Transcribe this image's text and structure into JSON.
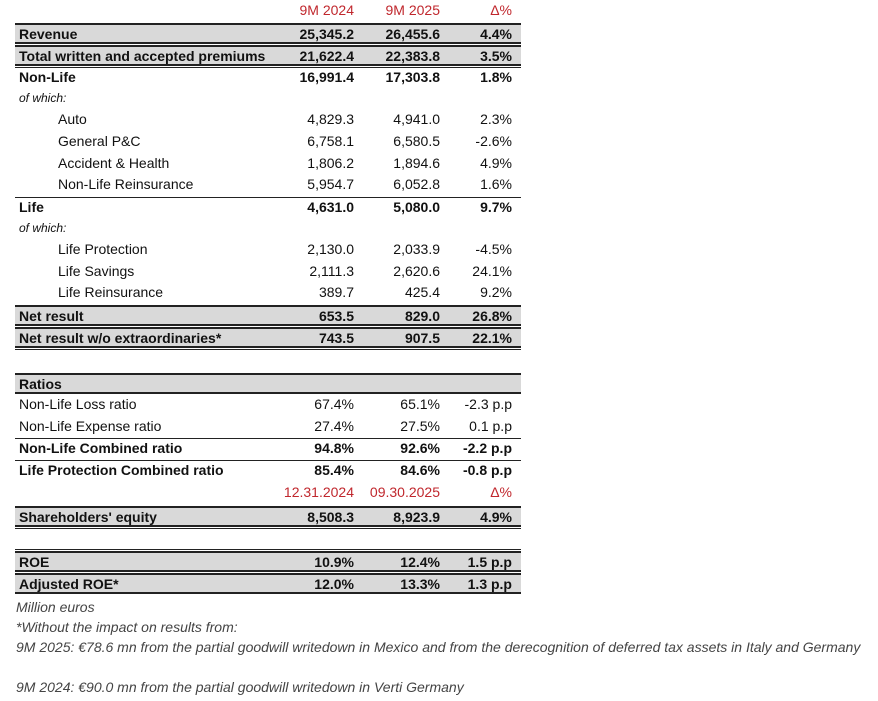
{
  "table": {
    "rows": [
      {
        "values": [
          "9M 2024",
          "9M 2025",
          "Δ%"
        ]
      },
      {
        "label": "Revenue",
        "values": [
          "25,345.2",
          "26,455.6",
          "4.4%"
        ]
      },
      {
        "label": "Total written and accepted premiums",
        "values": [
          "21,622.4",
          "22,383.8",
          "3.5%"
        ]
      },
      {
        "label": "Non-Life",
        "values": [
          "16,991.4",
          "17,303.8",
          "1.8%"
        ]
      },
      {
        "label": "of which:"
      },
      {
        "label": "Auto",
        "values": [
          "4,829.3",
          "4,941.0",
          "2.3%"
        ]
      },
      {
        "label": "General P&C",
        "values": [
          "6,758.1",
          "6,580.5",
          "-2.6%"
        ]
      },
      {
        "label": "Accident & Health",
        "values": [
          "1,806.2",
          "1,894.6",
          "4.9%"
        ]
      },
      {
        "label": "Non-Life Reinsurance",
        "values": [
          "5,954.7",
          "6,052.8",
          "1.6%"
        ]
      },
      {
        "label": "Life",
        "values": [
          "4,631.0",
          "5,080.0",
          "9.7%"
        ]
      },
      {
        "label": "of which:"
      },
      {
        "label": "Life Protection",
        "values": [
          "2,130.0",
          "2,033.9",
          "-4.5%"
        ]
      },
      {
        "label": "Life Savings",
        "values": [
          "2,111.3",
          "2,620.6",
          "24.1%"
        ]
      },
      {
        "label": "Life Reinsurance",
        "values": [
          "389.7",
          "425.4",
          "9.2%"
        ]
      },
      {
        "label": "Net result",
        "values": [
          "653.5",
          "829.0",
          "26.8%"
        ]
      },
      {
        "label": "Net result w/o extraordinaries*",
        "values": [
          "743.5",
          "907.5",
          "22.1%"
        ]
      },
      {
        "label": "Ratios"
      },
      {
        "label": "Non-Life Loss ratio",
        "values": [
          "67.4%",
          "65.1%",
          "-2.3 p.p"
        ]
      },
      {
        "label": "Non-Life Expense ratio",
        "values": [
          "27.4%",
          "27.5%",
          "0.1 p.p"
        ]
      },
      {
        "label": "Non-Life Combined ratio",
        "values": [
          "94.8%",
          "92.6%",
          "-2.2 p.p"
        ]
      },
      {
        "label": "Life Protection Combined ratio",
        "values": [
          "85.4%",
          "84.6%",
          "-0.8 p.p"
        ]
      },
      {
        "values": [
          "12.31.2024",
          "09.30.2025",
          "Δ%"
        ]
      },
      {
        "label": "Shareholders' equity",
        "values": [
          "8,508.3",
          "8,923.9",
          "4.9%"
        ]
      },
      {
        "label": "ROE",
        "values": [
          "10.9%",
          "12.4%",
          "1.5 p.p"
        ]
      },
      {
        "label": "Adjusted ROE*",
        "values": [
          "12.0%",
          "13.3%",
          "1.3 p.p"
        ]
      }
    ]
  },
  "footnotes": [
    "Million euros",
    "*Without the impact on results from:",
    "9M 2025: €78.6 mn from the partial goodwill writedown in Mexico and from the derecognition of deferred tax assets in Italy and Germany",
    "9M 2024: €90.0 mn from the partial goodwill writedown in Verti Germany"
  ]
}
